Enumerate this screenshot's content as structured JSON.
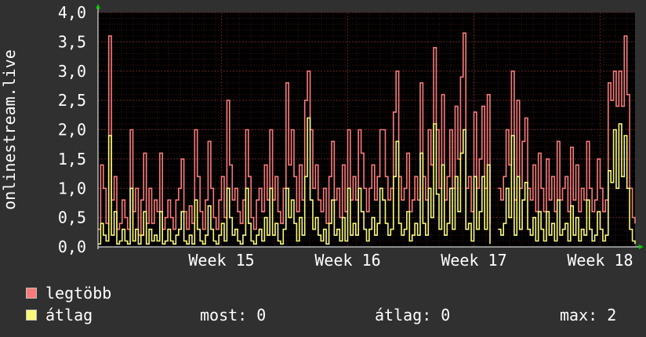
{
  "chart_data": {
    "type": "line",
    "ylabel": "onlinestream.live",
    "ylim": [
      0,
      4
    ],
    "yticks": [
      "0,0",
      "0,5",
      "1,0",
      "1,5",
      "2,0",
      "2,5",
      "3,0",
      "3,5",
      "4,0"
    ],
    "xticks": [
      {
        "label": "Week 15",
        "pos": 0.23
      },
      {
        "label": "Week 16",
        "pos": 0.465
      },
      {
        "label": "Week 17",
        "pos": 0.7
      },
      {
        "label": "Week 18",
        "pos": 0.935
      }
    ],
    "grid": true,
    "series": [
      {
        "name": "legtöbb",
        "color": "#f87a7a",
        "values": [
          0.3,
          1.4,
          1.0,
          0.4,
          3.6,
          0.8,
          1.2,
          0.3,
          0.4,
          0.8,
          0.5,
          0.3,
          2.0,
          0.6,
          1.0,
          0.2,
          0.8,
          1.6,
          0.4,
          1.0,
          0.4,
          0.8,
          0.6,
          1.6,
          0.3,
          0.5,
          0.8,
          0.5,
          0.3,
          0.8,
          1.0,
          1.5,
          0.6,
          0.3,
          0.7,
          0.4,
          2.0,
          1.2,
          0.6,
          0.3,
          0.8,
          1.8,
          1.0,
          0.5,
          0.3,
          0.8,
          1.2,
          0.5,
          2.5,
          1.4,
          0.8,
          1.0,
          0.6,
          0.4,
          0.8,
          2.0,
          1.2,
          0.5,
          0.3,
          0.8,
          1.0,
          0.6,
          1.4,
          0.8,
          2.0,
          0.8,
          1.2,
          0.6,
          0.4,
          1.0,
          2.8,
          1.4,
          2.0,
          1.2,
          0.6,
          1.4,
          0.8,
          2.5,
          3.0,
          2.0,
          1.0,
          1.4,
          0.8,
          0.6,
          1.0,
          0.4,
          1.2,
          1.8,
          0.8,
          1.0,
          0.5,
          1.4,
          0.6,
          2.0,
          0.8,
          1.2,
          0.8,
          2.0,
          1.6,
          1.0,
          0.6,
          1.0,
          1.4,
          0.8,
          1.2,
          2.0,
          2.0,
          1.2,
          0.8,
          1.0,
          2.3,
          3.0,
          1.2,
          0.8,
          1.0,
          1.6,
          0.6,
          0.8,
          1.2,
          0.8,
          2.8,
          1.2,
          0.8,
          2.0,
          1.4,
          3.4,
          2.0,
          1.0,
          2.6,
          0.8,
          1.2,
          2.0,
          1.0,
          2.4,
          1.5,
          2.9,
          3.65,
          1.0,
          1.2,
          0.6,
          2.3,
          1.0,
          1.5,
          2.4,
          1.0,
          2.6,
          0.4,
          null,
          null,
          1.0,
          0.8,
          1.2,
          2.0,
          1.4,
          3.0,
          0.8,
          2.5,
          1.0,
          1.8,
          2.2,
          1.0,
          0.8,
          1.4,
          0.6,
          1.6,
          1.0,
          0.6,
          1.5,
          0.8,
          1.2,
          0.6,
          1.8,
          0.8,
          1.0,
          1.2,
          0.6,
          1.7,
          0.8,
          1.4,
          0.6,
          1.0,
          0.8,
          1.8,
          1.0,
          0.6,
          0.8,
          1.5,
          1.0,
          0.6,
          0.8,
          2.8,
          2.5,
          3.0,
          2.4,
          3.0,
          2.4,
          3.6,
          2.6,
          1.0,
          0.5,
          0.4
        ],
        "markers": [
          0,
          0,
          0,
          0,
          0,
          0,
          0,
          0,
          0,
          0,
          0,
          0,
          0,
          0,
          0,
          0,
          0,
          0,
          0,
          0,
          0,
          0,
          0,
          0,
          0,
          0,
          0,
          0,
          0,
          0,
          0,
          0,
          0,
          0,
          0,
          0,
          0,
          0,
          0,
          0,
          0,
          0,
          0,
          0,
          0,
          0,
          0,
          0,
          0,
          0,
          0,
          0,
          0,
          0,
          0,
          0,
          0,
          0,
          0,
          0,
          0,
          0,
          0,
          0,
          0,
          0,
          0,
          0,
          0,
          0,
          0,
          0,
          0,
          0,
          0,
          0,
          0,
          0,
          0,
          0,
          0,
          0,
          0,
          0,
          0,
          0,
          0,
          0,
          0,
          0,
          0,
          0,
          0,
          0,
          0,
          0,
          0,
          0,
          0,
          0,
          0,
          0,
          0,
          0,
          0,
          0,
          0,
          0,
          0,
          0,
          0,
          0,
          0,
          0,
          0,
          0,
          0,
          0,
          0,
          0,
          0,
          0,
          0,
          0,
          0,
          0,
          0,
          0,
          0,
          0,
          0,
          0,
          0,
          0,
          0,
          0,
          0,
          0,
          0,
          0,
          0,
          0,
          0,
          0,
          0,
          0,
          0,
          0,
          0,
          0,
          0,
          0,
          0,
          0,
          0,
          0,
          0,
          0,
          0,
          0,
          0,
          0,
          0,
          0,
          0,
          0,
          0,
          0,
          0,
          0,
          0,
          0,
          0,
          0,
          0,
          0,
          0,
          0,
          0,
          0,
          0,
          0,
          0,
          0,
          0,
          0,
          0,
          0,
          0,
          0,
          0,
          0,
          0,
          0,
          0,
          0,
          0,
          0,
          0,
          0,
          0,
          0,
          0,
          0
        ]
      },
      {
        "name": "átlag",
        "color": "#f8f87a",
        "values": [
          0.05,
          0.4,
          0.2,
          0.1,
          1.9,
          0.2,
          0.6,
          0.05,
          0.1,
          0.3,
          0.1,
          0.05,
          1.0,
          0.1,
          0.3,
          0.05,
          0.2,
          0.6,
          0.05,
          0.3,
          0.1,
          0.2,
          0.1,
          0.6,
          0.05,
          0.1,
          0.3,
          0.1,
          0.05,
          0.2,
          0.3,
          0.6,
          0.1,
          0.05,
          0.2,
          0.05,
          0.8,
          0.3,
          0.1,
          0.05,
          0.2,
          0.7,
          0.3,
          0.1,
          0.05,
          0.2,
          0.4,
          0.1,
          1.0,
          0.5,
          0.2,
          0.3,
          0.1,
          0.05,
          0.2,
          1.0,
          0.4,
          0.1,
          0.05,
          0.2,
          0.3,
          0.1,
          0.5,
          0.2,
          1.0,
          0.2,
          0.4,
          0.1,
          0.05,
          0.3,
          1.0,
          0.5,
          0.8,
          0.4,
          0.1,
          0.5,
          0.2,
          1.2,
          2.2,
          0.8,
          0.3,
          0.5,
          0.2,
          0.1,
          0.3,
          0.05,
          0.4,
          0.8,
          0.2,
          0.3,
          0.1,
          0.5,
          0.1,
          1.0,
          0.2,
          0.4,
          0.2,
          1.0,
          0.6,
          0.3,
          0.1,
          0.3,
          0.5,
          0.2,
          0.4,
          1.0,
          0.8,
          0.4,
          0.2,
          0.3,
          1.2,
          1.8,
          0.4,
          0.2,
          0.3,
          0.6,
          0.1,
          0.2,
          0.4,
          0.2,
          1.6,
          0.4,
          0.2,
          1.0,
          0.5,
          2.1,
          0.9,
          0.3,
          1.4,
          0.2,
          0.4,
          1.0,
          0.3,
          1.2,
          0.6,
          1.6,
          2.0,
          0.3,
          0.4,
          0.1,
          1.2,
          0.3,
          0.6,
          1.2,
          0.3,
          1.4,
          0.05,
          null,
          null,
          0.3,
          0.2,
          0.4,
          1.0,
          0.5,
          1.9,
          0.2,
          1.2,
          0.3,
          0.8,
          1.1,
          0.3,
          0.2,
          0.5,
          0.1,
          0.6,
          0.3,
          0.1,
          0.6,
          0.2,
          0.4,
          0.1,
          0.8,
          0.2,
          0.3,
          0.4,
          0.1,
          0.7,
          0.2,
          0.5,
          0.1,
          0.3,
          0.2,
          0.8,
          0.3,
          0.1,
          0.2,
          0.6,
          0.3,
          0.1,
          0.2,
          1.3,
          1.1,
          2.0,
          1.0,
          2.1,
          1.2,
          1.9,
          1.0,
          0.3,
          0.1,
          0.05
        ],
        "markers": [
          0,
          0,
          0,
          0,
          0,
          0,
          0,
          0,
          0,
          0,
          0,
          0,
          0,
          0,
          0,
          0,
          0,
          0,
          0,
          0,
          0,
          0,
          0,
          0,
          0,
          0,
          0,
          0,
          0,
          0,
          0,
          0,
          0,
          0,
          0,
          0,
          0,
          0,
          0,
          0,
          0,
          0,
          0,
          0,
          0,
          0,
          0,
          0,
          0,
          0,
          0,
          0,
          0,
          0,
          0,
          0,
          0,
          0,
          0,
          0,
          0,
          0,
          0,
          0,
          0,
          0,
          0,
          0,
          0,
          0,
          0,
          0,
          0,
          0,
          0,
          0,
          0,
          0,
          0,
          0,
          0,
          0,
          0,
          0,
          0,
          0,
          0,
          0,
          0,
          0,
          0,
          0,
          0,
          0,
          0,
          0,
          0,
          0,
          0,
          0,
          0,
          0,
          0,
          0,
          0,
          0,
          0,
          0,
          0,
          0,
          0,
          0,
          0,
          0,
          0,
          0,
          0,
          0,
          0,
          0,
          0,
          0,
          0,
          0,
          0,
          0,
          0,
          0,
          0,
          0,
          0,
          0,
          0,
          0,
          0,
          0,
          0,
          0,
          0,
          0,
          0,
          0,
          0,
          0,
          0,
          0,
          0,
          0,
          0,
          0,
          0,
          0,
          0,
          0,
          0,
          0,
          0,
          0,
          0,
          0,
          0,
          0,
          0,
          0,
          0,
          0,
          0,
          0,
          0,
          0,
          0,
          0,
          0,
          0,
          0,
          0,
          0,
          0,
          0,
          0,
          0,
          0,
          0,
          0,
          0,
          0,
          0,
          0,
          0,
          0,
          0,
          0,
          0,
          0,
          0,
          0,
          0,
          0,
          0,
          0,
          0,
          0,
          0,
          0
        ]
      }
    ]
  },
  "legend": {
    "max_label": "legtöbb",
    "avg_label": "átlag",
    "most_text": "most: 0",
    "atlag_text": "átlag: 0",
    "max_text": "max: 2"
  },
  "colors": {
    "background": "#303030",
    "plot_background": "#000000",
    "grid": "#5a2020",
    "axis": "#ffffff",
    "arrow": "#00cc00"
  }
}
